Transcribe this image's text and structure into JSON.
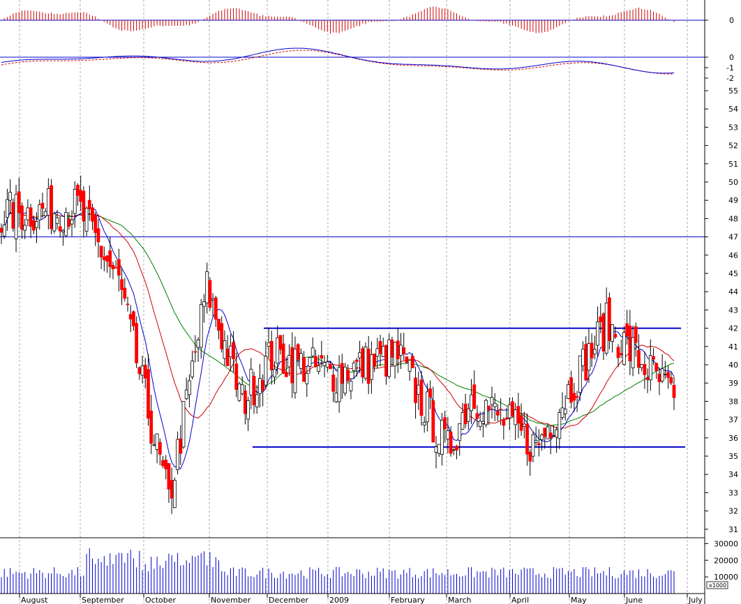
{
  "chart_data": [
    {
      "panel": "histogram-oscillator",
      "type": "bar",
      "y_tick_labels": [
        "0"
      ],
      "colors": {
        "bars": "#cc0000",
        "zero_line": "#0000cc"
      }
    },
    {
      "panel": "oscillator-lines",
      "type": "line",
      "y_tick_labels": [
        "0",
        "-1",
        "-2"
      ],
      "series": [
        {
          "style": "solid",
          "color": "#0000cc"
        },
        {
          "style": "dashed",
          "color": "#cc0000"
        }
      ],
      "colors": {
        "zero_line": "#0000cc"
      }
    },
    {
      "panel": "price",
      "type": "candlestick",
      "y_tick_labels": [
        "55",
        "54",
        "53",
        "52",
        "51",
        "50",
        "49",
        "48",
        "47",
        "46",
        "45",
        "44",
        "43",
        "42",
        "41",
        "40",
        "39",
        "38",
        "37",
        "36",
        "35",
        "34",
        "33",
        "32",
        "31"
      ],
      "ylim": [
        30,
        55.5
      ],
      "x_tick_labels": [
        "August",
        "September",
        "October",
        "November",
        "December",
        "2009",
        "February",
        "March",
        "April",
        "May",
        "June",
        "July"
      ],
      "horizontal_lines": [
        47,
        42,
        35.5
      ],
      "colors": {
        "up": "#ffffff",
        "down": "#ff0000",
        "ma_short": "#0000cc",
        "ma_mid": "#cc0000",
        "ma_long": "#008000",
        "levels": "#0000cc"
      },
      "approx_close": {
        "Aug": 48.3,
        "Sep-early": 48.6,
        "Sep-late": 44.5,
        "Oct-mid": 36,
        "Oct-low": 32.5,
        "Nov-early": 44.2,
        "Nov-late": 38,
        "Dec": 40.5,
        "Jan": 39.5,
        "Feb": 40.5,
        "Mar-low": 35.3,
        "Mar-late": 38.4,
        "Apr-low": 35.5,
        "May": 41,
        "Jun-high": 42.2,
        "last": 38.2
      }
    },
    {
      "panel": "volume",
      "type": "bar",
      "y_tick_labels": [
        "30000",
        "20000",
        "10000"
      ],
      "unit_label": "x1000",
      "colors": {
        "bars": "#0000cc"
      }
    }
  ]
}
